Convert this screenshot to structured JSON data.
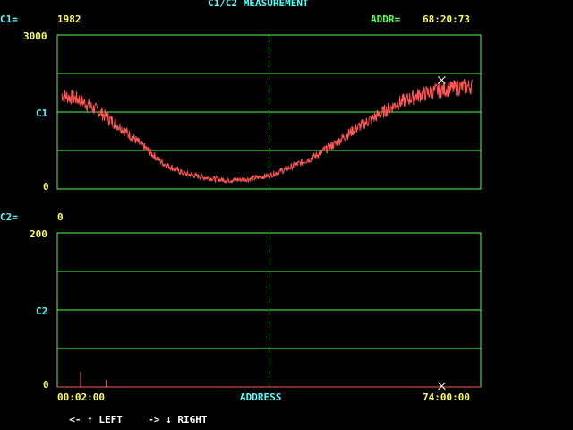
{
  "title": "C1/C2 MEASUREMENT",
  "c1": {
    "label": "C1=",
    "value": "1982"
  },
  "addr": {
    "label": "ADDR=",
    "value": "68:20:73"
  },
  "c2": {
    "label": "C2=",
    "value": "0"
  },
  "plot1": {
    "ymax": "3000",
    "ylabel": "C1",
    "ymin": "0"
  },
  "plot2": {
    "ymax": "200",
    "ylabel": "C2",
    "ymin": "0"
  },
  "xaxis": {
    "start": "00:02:00",
    "label": "ADDRESS",
    "end": "74:00:00"
  },
  "help": {
    "left_keys": "<- ",
    "left_label": "LEFT",
    "right_keys": "-> ",
    "right_label": "RIGHT"
  },
  "colors": {
    "grid": "#55ff55",
    "trace": "#ff5555",
    "cursor": "#ffffff",
    "label": "#55ffff",
    "value": "#ffff55"
  },
  "chart_data": [
    {
      "type": "line",
      "title": "",
      "ylabel": "C1",
      "ylim": [
        0,
        3000
      ],
      "xlim": [
        "00:02:00",
        "74:00:00"
      ],
      "cursor_x_fraction": 0.5,
      "x_fraction": [
        0,
        0.05,
        0.1,
        0.15,
        0.2,
        0.25,
        0.3,
        0.35,
        0.4,
        0.45,
        0.5,
        0.55,
        0.6,
        0.65,
        0.7,
        0.75,
        0.8,
        0.85,
        0.9,
        0.95,
        0.98
      ],
      "values": [
        1850,
        1750,
        1500,
        1200,
        850,
        500,
        300,
        220,
        170,
        190,
        260,
        420,
        600,
        850,
        1150,
        1400,
        1650,
        1820,
        1920,
        1980,
        2000
      ],
      "end_marker_value": 1982
    },
    {
      "type": "line",
      "title": "",
      "ylabel": "C2",
      "ylim": [
        0,
        200
      ],
      "xlim": [
        "00:02:00",
        "74:00:00"
      ],
      "cursor_x_fraction": 0.5,
      "baseline_value": 0,
      "spikes": [
        {
          "x_fraction": 0.055,
          "value": 20
        },
        {
          "x_fraction": 0.115,
          "value": 10
        }
      ],
      "end_marker_value": 0
    }
  ]
}
